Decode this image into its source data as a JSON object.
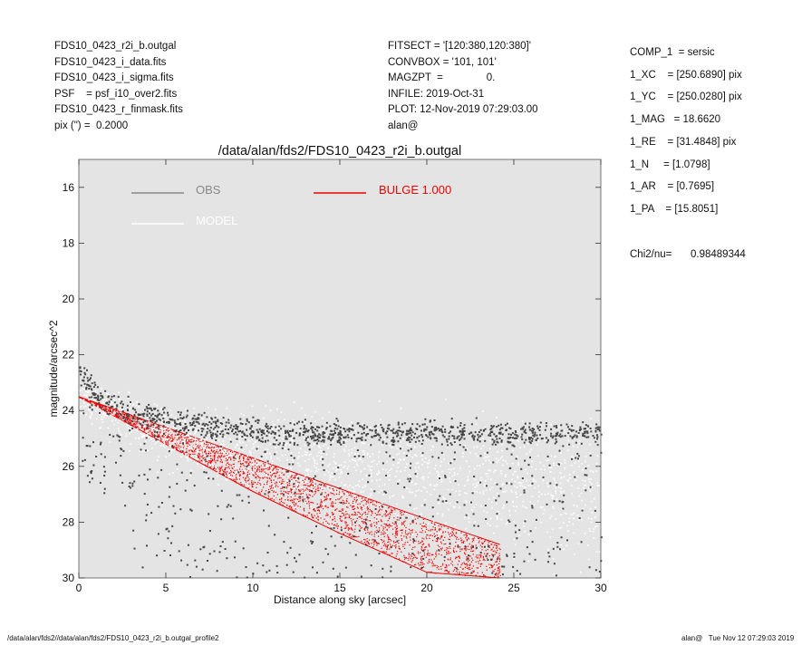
{
  "header_left": [
    "FDS10_0423_r2i_b.outgal",
    "FDS10_0423_i_data.fits",
    "FDS10_0423_i_sigma.fits",
    "PSF    = psf_i10_over2.fits",
    "FDS10_0423_r_finmask.fits",
    "pix (\") =  0.2000"
  ],
  "header_mid": [
    "FITSECT = '[120:380,120:380]'",
    "CONVBOX = '101, 101'",
    "MAGZPT  =               0.",
    "INFILE: 2019-Oct-31",
    "PLOT: 12-Nov-2019 07:29:03.00",
    "alan@"
  ],
  "params": [
    "COMP_1  = sersic",
    "1_XC    = [250.6890] pix",
    "1_YC    = [250.0280] pix",
    "1_MAG   = 18.6620",
    "1_RE    = [31.4848] pix",
    "1_N     = [1.0798]",
    "1_AR    = [0.7695]",
    "1_PA    = [15.8051]"
  ],
  "chi2_label": "Chi2/nu=",
  "chi2_value": "0.98489344",
  "footer_left": "/data/alan/fds2//data/alan/fds2/FDS10_0423_r2i_b.outgal_profile2",
  "footer_right": "alan@   Tue Nov 12 07:29:03 2019",
  "colors": {
    "plot_bg": "#e4e4e4",
    "obs": "#444444",
    "obs_legend": "#888888",
    "model": "#ffffff",
    "bulge": "#ee0000"
  },
  "chart_data": {
    "type": "scatter",
    "title": "/data/alan/fds2/FDS10_0423_r2i_b.outgal",
    "xlabel": "Distance along sky [arcsec]",
    "ylabel": "magnitude/arcsec^2",
    "xlim": [
      0,
      30
    ],
    "ylim": [
      30,
      15
    ],
    "y_inverted": true,
    "x_ticks": [
      0,
      5,
      10,
      15,
      20,
      25,
      30
    ],
    "y_ticks": [
      16,
      18,
      20,
      22,
      24,
      26,
      28,
      30
    ],
    "legend": [
      {
        "name": "OBS",
        "color": "#888888"
      },
      {
        "name": "MODEL",
        "color": "#ffffff"
      },
      {
        "name": "BULGE  1.000",
        "color": "#ee0000"
      }
    ],
    "series": [
      {
        "name": "OBS",
        "description_points": "dense scatter; upper envelope band",
        "x": [
          0.2,
          0.5,
          1.0,
          2.0,
          3.0,
          5.0,
          8.0,
          10.0,
          12.0,
          15.0,
          18.0,
          20.0,
          22.0,
          25.0,
          28.0,
          30.0
        ],
        "y": [
          22.7,
          23.0,
          23.4,
          23.8,
          24.0,
          24.3,
          24.6,
          24.7,
          24.8,
          24.8,
          24.8,
          24.8,
          24.8,
          24.8,
          24.8,
          24.8
        ]
      },
      {
        "name": "MODEL",
        "x": [
          0,
          5,
          10,
          15,
          20,
          25,
          30
        ],
        "y": [
          23.5,
          24.9,
          25.4,
          25.9,
          26.3,
          26.6,
          26.9
        ]
      },
      {
        "name": "BULGE  1.000",
        "x": [
          0,
          5,
          10,
          15,
          20,
          24.2
        ],
        "y_upper": [
          23.5,
          24.6,
          25.7,
          26.8,
          27.9,
          28.8
        ],
        "y_lower": [
          23.5,
          25.2,
          26.9,
          28.4,
          29.8,
          30.0
        ]
      }
    ]
  }
}
